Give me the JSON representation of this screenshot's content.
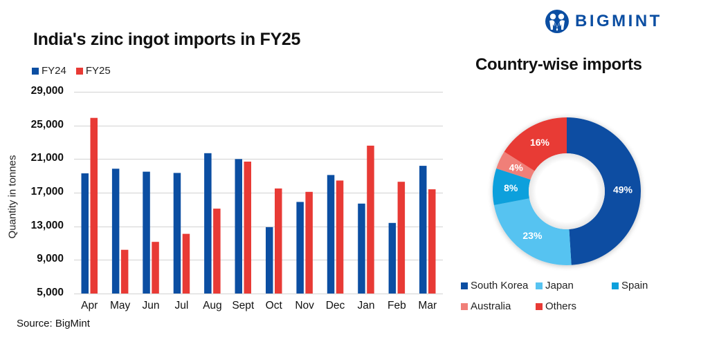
{
  "logo": {
    "text": "BIGMINT",
    "color": "#0b4ea2"
  },
  "bar_chart": {
    "title": "India's zinc ingot imports in FY25",
    "legend": [
      {
        "label": "FY24",
        "color": "#0b4ea2"
      },
      {
        "label": "FY25",
        "color": "#e83a35"
      }
    ],
    "ylabel": "Quantity in tonnes",
    "yticks": [
      "29,000",
      "25,000",
      "21,000",
      "17,000",
      "13,000",
      "9,000",
      "5,000"
    ],
    "source": "Source: BigMint"
  },
  "donut_chart": {
    "title": "Country-wise imports",
    "legend": [
      {
        "label": "South Korea",
        "color": "#0b4ea2"
      },
      {
        "label": "Japan",
        "color": "#57c3f1"
      },
      {
        "label": "Spain",
        "color": "#0da0dc"
      },
      {
        "label": "Australia",
        "color": "#f07f78"
      },
      {
        "label": "Others",
        "color": "#e83a35"
      }
    ]
  },
  "chart_data": [
    {
      "type": "bar",
      "title": "India's zinc ingot imports in FY25",
      "xlabel": "",
      "ylabel": "Quantity in tonnes",
      "ylim": [
        5000,
        29000
      ],
      "yticks": [
        5000,
        9000,
        13000,
        17000,
        21000,
        25000,
        29000
      ],
      "grid": true,
      "legend_position": "top-left",
      "categories": [
        "Apr",
        "May",
        "Jun",
        "Jul",
        "Aug",
        "Sept",
        "Oct",
        "Nov",
        "Dec",
        "Jan",
        "Feb",
        "Mar"
      ],
      "series": [
        {
          "name": "FY24",
          "color": "#0b4ea2",
          "values": [
            19300,
            19850,
            19500,
            19350,
            21700,
            21000,
            12900,
            15900,
            19100,
            15700,
            13400,
            20200
          ]
        },
        {
          "name": "FY25",
          "color": "#e83a35",
          "values": [
            25900,
            10200,
            11150,
            12100,
            15100,
            20700,
            17500,
            17100,
            18450,
            22600,
            18300,
            17400
          ]
        }
      ],
      "annotations": [
        "Source: BigMint"
      ]
    },
    {
      "type": "pie",
      "subtype": "donut",
      "title": "Country-wise imports",
      "categories": [
        "South Korea",
        "Japan",
        "Spain",
        "Australia",
        "Others"
      ],
      "values": [
        49,
        23,
        8,
        4,
        16
      ],
      "labels": [
        "49%",
        "23%",
        "8%",
        "4%",
        "16%"
      ],
      "colors": [
        "#0b4ea2",
        "#57c3f1",
        "#0da0dc",
        "#f07f78",
        "#e83a35"
      ],
      "legend_position": "bottom"
    }
  ]
}
